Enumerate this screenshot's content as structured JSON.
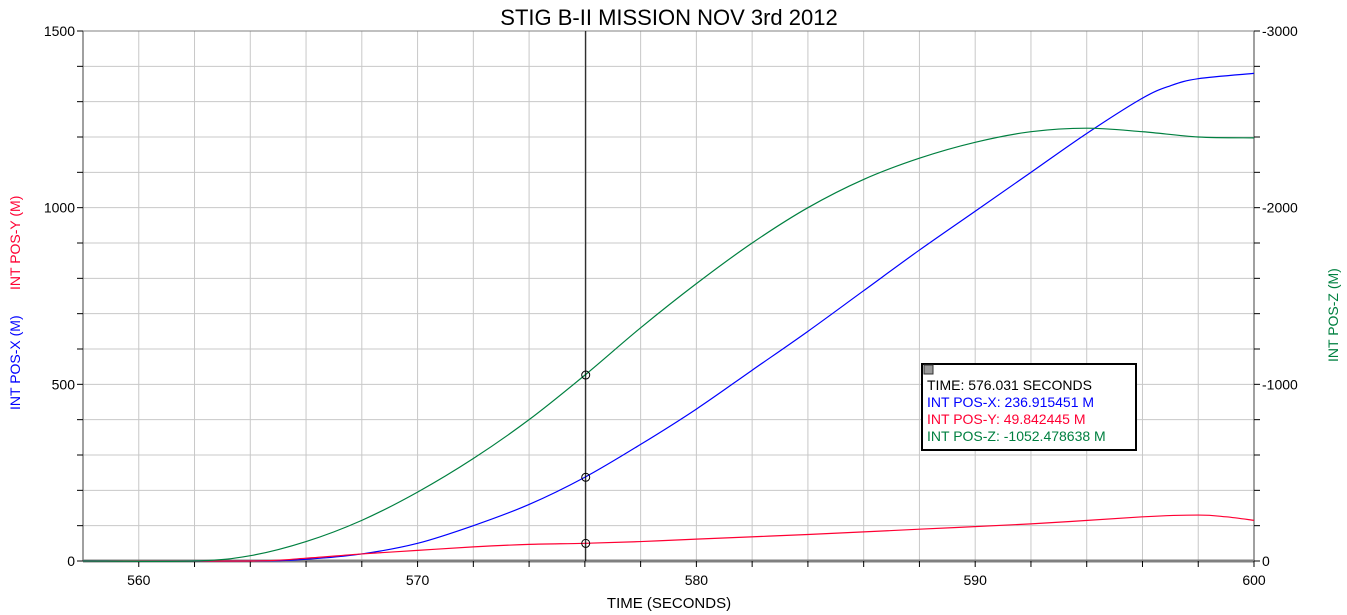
{
  "chart_data": {
    "type": "line",
    "title": "STIG B-II MISSION NOV 3rd  2012",
    "xlabel": "TIME (SECONDS)",
    "ylabel_left": [
      "INT POS-X (M)",
      "INT POS-Y (M)"
    ],
    "ylabel_right": "INT POS-Z (M)",
    "xlim": [
      558,
      600
    ],
    "ylim_left": [
      0,
      1500
    ],
    "ylim_right": [
      0,
      -3000
    ],
    "x_ticks": [
      560,
      570,
      580,
      590,
      600
    ],
    "y_ticks_left": [
      0,
      500,
      1000,
      1500
    ],
    "y_ticks_right": [
      0,
      -1000,
      -2000,
      -3000
    ],
    "grid": true,
    "series": [
      {
        "name": "INT POS-X",
        "axis": "left",
        "color": "#0000ff",
        "x": [
          558,
          564,
          566,
          568,
          570,
          572,
          574,
          576,
          578,
          580,
          582,
          584,
          586,
          588,
          590,
          592,
          594,
          596,
          597,
          598,
          600
        ],
        "y": [
          0,
          0,
          5,
          20,
          50,
          100,
          160,
          237,
          330,
          430,
          540,
          650,
          765,
          880,
          990,
          1100,
          1210,
          1310,
          1345,
          1365,
          1380
        ]
      },
      {
        "name": "INT POS-Y",
        "axis": "left",
        "color": "#ff0033",
        "x": [
          558,
          564,
          566,
          568,
          570,
          572,
          574,
          576,
          578,
          580,
          584,
          588,
          592,
          596,
          598,
          599,
          600
        ],
        "y": [
          0,
          0,
          8,
          20,
          30,
          40,
          47,
          50,
          55,
          62,
          75,
          90,
          105,
          125,
          130,
          125,
          115
        ]
      },
      {
        "name": "INT POS-Z",
        "axis": "right",
        "color": "#008040",
        "x": [
          558,
          562,
          564,
          566,
          568,
          570,
          572,
          574,
          576,
          578,
          580,
          582,
          584,
          586,
          588,
          590,
          592,
          594,
          596,
          598,
          600
        ],
        "y": [
          0,
          0,
          -30,
          -110,
          -230,
          -390,
          -580,
          -800,
          -1052,
          -1320,
          -1570,
          -1800,
          -2000,
          -2160,
          -2280,
          -2370,
          -2430,
          -2450,
          -2430,
          -2400,
          -2395
        ]
      }
    ],
    "cursor": {
      "time": 576.031,
      "readout": [
        "TIME: 576.031 SECONDS",
        "INT POS-X: 236.915451 M",
        "INT POS-Y: 49.842445 M",
        "INT POS-Z: -1052.478638 M"
      ],
      "values": {
        "x": 236.915451,
        "y": 49.842445,
        "z": -1052.478638
      }
    }
  }
}
